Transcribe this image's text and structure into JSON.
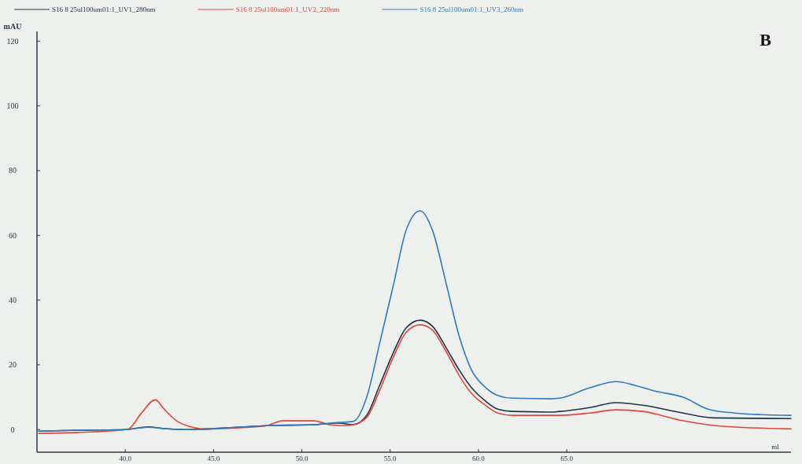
{
  "chart_data": {
    "type": "line",
    "xlabel": "ml",
    "ylabel": "mAU",
    "annotations": [
      "B"
    ],
    "legend": "top left",
    "xlim": [
      35,
      77.7
    ],
    "ylim": [
      -7,
      123
    ],
    "xticks": [
      {
        "value": 40,
        "label": "40.0"
      },
      {
        "value": 45,
        "label": "45.0"
      },
      {
        "value": 50,
        "label": "50.0"
      },
      {
        "value": 55,
        "label": "55.0"
      },
      {
        "value": 60,
        "label": "60.0"
      },
      {
        "value": 65,
        "label": "65.0"
      }
    ],
    "yticks": [
      0,
      20,
      40,
      60,
      80,
      100,
      120
    ],
    "series": [
      {
        "name": "S16 8 25ul100um01:1_UV1_280nm",
        "color": "#1f3347",
        "x": [
          35.1,
          37.3,
          40.0,
          41.3,
          42.2,
          43.6,
          46.3,
          48.0,
          50.7,
          52.1,
          52.9,
          53.7,
          54.4,
          55.2,
          55.9,
          56.7,
          57.4,
          58.2,
          58.9,
          59.6,
          60.4,
          61.1,
          61.9,
          64.1,
          64.6,
          66.3,
          67.8,
          69.3,
          71.6,
          73.3,
          77.7
        ],
        "values": [
          -0.5,
          -0.2,
          0,
          0.8,
          0.3,
          0,
          0.7,
          1.2,
          1.5,
          2.0,
          1.5,
          4.6,
          13.6,
          24,
          31.4,
          33.8,
          31.9,
          25,
          18.5,
          13,
          8.8,
          6.3,
          5.6,
          5.4,
          5.6,
          6.8,
          8.3,
          7.5,
          5.1,
          3.6,
          3.4
        ]
      },
      {
        "name": "S16 8 25ul100um01:1_UV2_220nm",
        "color": "#e0463a",
        "x": [
          35.1,
          37.3,
          40.0,
          40.2,
          40.9,
          41.7,
          42.2,
          42.9,
          43.6,
          44.5,
          46.3,
          48.0,
          48.9,
          50.7,
          51.6,
          52.5,
          52.9,
          53.7,
          54.4,
          55.2,
          55.9,
          56.7,
          57.4,
          58.2,
          58.9,
          59.6,
          60.4,
          61.1,
          61.9,
          64.1,
          64.6,
          66.3,
          67.8,
          69.3,
          71.6,
          73.8,
          77.7
        ],
        "values": [
          -1.2,
          -0.9,
          0,
          0.2,
          5,
          9.2,
          6.3,
          2.7,
          1,
          0.2,
          0.5,
          1.2,
          2.7,
          2.7,
          1.5,
          1.2,
          1.5,
          3.9,
          12,
          22.6,
          30,
          32.4,
          30.7,
          23.8,
          16.8,
          11.2,
          7.5,
          5.1,
          4.4,
          4.4,
          4.4,
          5.1,
          6.1,
          5.6,
          2.7,
          1.0,
          0.2
        ]
      },
      {
        "name": "S16 8 25ul100um01:1_UV3_260nm",
        "color": "#2e7bc4",
        "x": [
          35.1,
          37.3,
          40.0,
          41.3,
          42.2,
          43.6,
          46.3,
          48.0,
          50.7,
          52.1,
          52.9,
          53.7,
          54.4,
          55.2,
          55.9,
          56.7,
          57.4,
          58.2,
          58.9,
          59.6,
          60.4,
          61.1,
          61.9,
          64.1,
          64.6,
          66.3,
          67.8,
          68.9,
          70.0,
          71.6,
          73.0,
          74.5,
          76.0,
          77.7
        ],
        "values": [
          -0.5,
          -0.2,
          0,
          0.7,
          0.3,
          0,
          0.7,
          1.2,
          1.5,
          2.2,
          2.5,
          10.5,
          26.5,
          45,
          61.5,
          67.6,
          61.5,
          44.5,
          29,
          18.5,
          13,
          10.5,
          9.7,
          9.5,
          9.7,
          12.9,
          14.8,
          13.6,
          11.9,
          10,
          6.3,
          5.1,
          4.6,
          4.4
        ]
      }
    ]
  }
}
